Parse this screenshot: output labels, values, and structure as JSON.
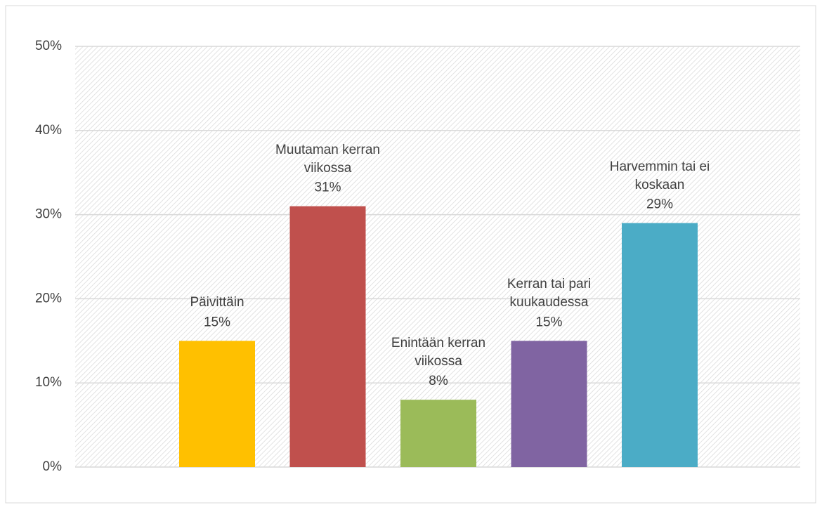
{
  "chart_data": {
    "type": "bar",
    "series": [
      {
        "name": "Päivittäin",
        "color": "#ffc000",
        "values": [
          15
        ],
        "value_labels": [
          "15%"
        ]
      },
      {
        "name": "Muutaman kerran viikossa",
        "color": "#c0504d",
        "values": [
          31
        ],
        "value_labels": [
          "31%"
        ]
      },
      {
        "name": "Enintään kerran viikossa",
        "color": "#9bbb59",
        "values": [
          8
        ],
        "value_labels": [
          "8%"
        ]
      },
      {
        "name": "Kerran tai pari kuukaudessa",
        "color": "#8064a2",
        "values": [
          15
        ],
        "value_labels": [
          "15%"
        ]
      },
      {
        "name": "Harvemmin tai ei koskaan",
        "color": "#4bacc6",
        "values": [
          29
        ],
        "value_labels": [
          "29%"
        ]
      }
    ],
    "ylim": [
      0,
      50
    ],
    "yticks": [
      {
        "value": 0,
        "label": "0%"
      },
      {
        "value": 10,
        "label": "10%"
      },
      {
        "value": 20,
        "label": "20%"
      },
      {
        "value": 30,
        "label": "30%"
      },
      {
        "value": 40,
        "label": "40%"
      },
      {
        "value": 50,
        "label": "50%"
      }
    ],
    "grid": true
  }
}
